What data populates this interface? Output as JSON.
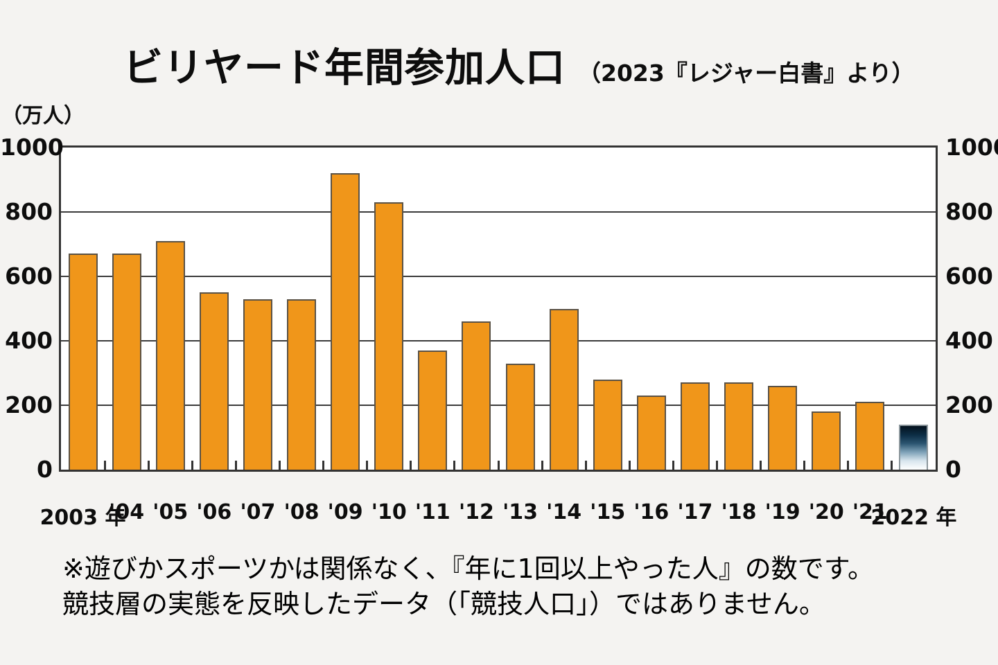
{
  "chart_data": {
    "type": "bar",
    "title": "ビリヤード年間参加人口",
    "subtitle": "（2023『レジャー白書』より）",
    "ylabel_unit": "（万人）",
    "categories": [
      "2003 年",
      "'04",
      "'05",
      "'06",
      "'07",
      "'08",
      "'09",
      "'10",
      "'11",
      "'12",
      "'13",
      "'14",
      "'15",
      "'16",
      "'17",
      "'18",
      "'19",
      "'20",
      "'21",
      "2022 年"
    ],
    "values": [
      670,
      670,
      710,
      550,
      530,
      530,
      920,
      830,
      370,
      460,
      330,
      500,
      280,
      230,
      270,
      270,
      260,
      180,
      210,
      140
    ],
    "ylim": [
      0,
      1000
    ],
    "yticks": [
      0,
      200,
      400,
      600,
      800,
      1000
    ],
    "grid": true,
    "legend": "none",
    "y_axis_labels_position": "both-sides",
    "last_bar_style": "dark-to-white-gradient"
  },
  "footnote": {
    "line1": "※遊びかスポーツかは関係なく、『年に1回以上やった人』の数です。",
    "line2": "競技層の実態を反映したデータ（「競技人口」）ではありません。"
  },
  "colors": {
    "background": "#F4F3F1",
    "plot_background": "#FFFFFF",
    "bar_fill": "#F0961A",
    "bar_border": "#5A5246",
    "axis": "#333333",
    "gridline": "#3B3B3B",
    "text": "#111111",
    "last_bar_gradient": [
      "#04121E",
      "#0C2C44",
      "#2B5570",
      "#7FA2B8",
      "#D9E6EE",
      "#FFFFFF"
    ]
  }
}
